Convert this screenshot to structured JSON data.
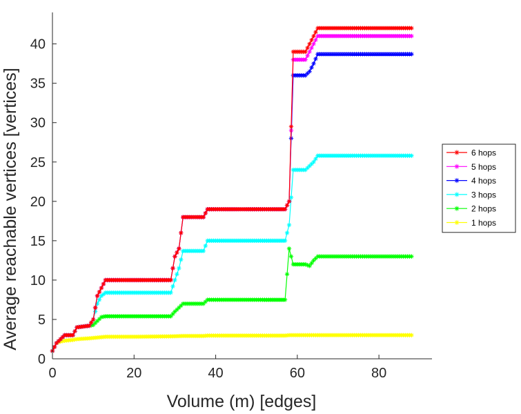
{
  "chart_data": {
    "type": "line",
    "title": "",
    "xlabel": "Volume (m) [edges]",
    "ylabel": "Average reachable vertices [vertices]",
    "xlim": [
      0,
      93
    ],
    "ylim": [
      0,
      44
    ],
    "xticks": [
      0,
      20,
      40,
      60,
      80
    ],
    "yticks": [
      0,
      5,
      10,
      15,
      20,
      25,
      30,
      35,
      40
    ],
    "grid": false,
    "legend_position": "right",
    "marker": "star",
    "series": [
      {
        "name": "6 hops",
        "color": "#ff0000",
        "points": [
          [
            0,
            1
          ],
          [
            1,
            2
          ],
          [
            3,
            3
          ],
          [
            5,
            3
          ],
          [
            6,
            4
          ],
          [
            9,
            4.2
          ],
          [
            10,
            5
          ],
          [
            11,
            8
          ],
          [
            12,
            9
          ],
          [
            13,
            10
          ],
          [
            29,
            10
          ],
          [
            30,
            13
          ],
          [
            31,
            14
          ],
          [
            32,
            18
          ],
          [
            37,
            18
          ],
          [
            38,
            19
          ],
          [
            57,
            19
          ],
          [
            58,
            20
          ],
          [
            59,
            39
          ],
          [
            62,
            39
          ],
          [
            63,
            40
          ],
          [
            64,
            41
          ],
          [
            65,
            42
          ],
          [
            88,
            42
          ]
        ]
      },
      {
        "name": "5 hops",
        "color": "#ff00ff",
        "points": [
          [
            0,
            1
          ],
          [
            1,
            2
          ],
          [
            3,
            3
          ],
          [
            5,
            3
          ],
          [
            6,
            4
          ],
          [
            9,
            4.2
          ],
          [
            10,
            5
          ],
          [
            11,
            8
          ],
          [
            12,
            9
          ],
          [
            13,
            10
          ],
          [
            29,
            10
          ],
          [
            30,
            13
          ],
          [
            31,
            14
          ],
          [
            32,
            18
          ],
          [
            37,
            18
          ],
          [
            38,
            19
          ],
          [
            57,
            19
          ],
          [
            58,
            20
          ],
          [
            59,
            38
          ],
          [
            62,
            38
          ],
          [
            63,
            39
          ],
          [
            64,
            40
          ],
          [
            65,
            41
          ],
          [
            88,
            41
          ]
        ]
      },
      {
        "name": "4 hops",
        "color": "#0000ff",
        "points": [
          [
            0,
            1
          ],
          [
            1,
            2
          ],
          [
            3,
            3
          ],
          [
            5,
            3
          ],
          [
            6,
            4
          ],
          [
            9,
            4.2
          ],
          [
            10,
            5
          ],
          [
            11,
            8
          ],
          [
            12,
            9
          ],
          [
            13,
            10
          ],
          [
            29,
            10
          ],
          [
            30,
            13
          ],
          [
            31,
            14
          ],
          [
            32,
            18
          ],
          [
            37,
            18
          ],
          [
            38,
            19
          ],
          [
            57,
            19
          ],
          [
            58,
            20
          ],
          [
            59,
            36
          ],
          [
            62,
            36
          ],
          [
            63,
            36.5
          ],
          [
            64,
            37.5
          ],
          [
            65,
            38.7
          ],
          [
            88,
            38.7
          ]
        ]
      },
      {
        "name": "3 hops",
        "color": "#00ffff",
        "points": [
          [
            0,
            1
          ],
          [
            1,
            2
          ],
          [
            3,
            3
          ],
          [
            5,
            3
          ],
          [
            6,
            4
          ],
          [
            9,
            4.2
          ],
          [
            10,
            5
          ],
          [
            11,
            7
          ],
          [
            12,
            8
          ],
          [
            13,
            8.4
          ],
          [
            29,
            8.4
          ],
          [
            30,
            10
          ],
          [
            31,
            11.5
          ],
          [
            32,
            13.7
          ],
          [
            37,
            13.7
          ],
          [
            38,
            15
          ],
          [
            57,
            15
          ],
          [
            58,
            17
          ],
          [
            59,
            24
          ],
          [
            62,
            24
          ],
          [
            63,
            24.5
          ],
          [
            64,
            25
          ],
          [
            65,
            25.8
          ],
          [
            88,
            25.8
          ]
        ]
      },
      {
        "name": "2 hops",
        "color": "#00ff00",
        "points": [
          [
            0,
            1
          ],
          [
            1,
            2
          ],
          [
            3,
            3
          ],
          [
            5,
            3
          ],
          [
            6,
            4
          ],
          [
            9,
            4.2
          ],
          [
            10,
            4.3
          ],
          [
            11,
            4.8
          ],
          [
            12,
            5.3
          ],
          [
            13,
            5.4
          ],
          [
            29,
            5.4
          ],
          [
            30,
            6
          ],
          [
            31,
            6.5
          ],
          [
            32,
            7
          ],
          [
            37,
            7
          ],
          [
            38,
            7.5
          ],
          [
            57,
            7.5
          ],
          [
            58,
            14
          ],
          [
            59,
            12
          ],
          [
            62,
            12
          ],
          [
            63,
            11.8
          ],
          [
            64,
            12.5
          ],
          [
            65,
            13
          ],
          [
            88,
            13
          ]
        ]
      },
      {
        "name": "1 hops",
        "color": "#ffff00",
        "points": [
          [
            0,
            1
          ],
          [
            1,
            2
          ],
          [
            2,
            2.2
          ],
          [
            3,
            2.3
          ],
          [
            5,
            2.4
          ],
          [
            6,
            2.5
          ],
          [
            9,
            2.6
          ],
          [
            11,
            2.7
          ],
          [
            13,
            2.8
          ],
          [
            20,
            2.8
          ],
          [
            29,
            2.85
          ],
          [
            32,
            2.9
          ],
          [
            37,
            2.9
          ],
          [
            38,
            2.95
          ],
          [
            57,
            2.95
          ],
          [
            58,
            3
          ],
          [
            65,
            3
          ],
          [
            88,
            3
          ]
        ]
      }
    ]
  }
}
